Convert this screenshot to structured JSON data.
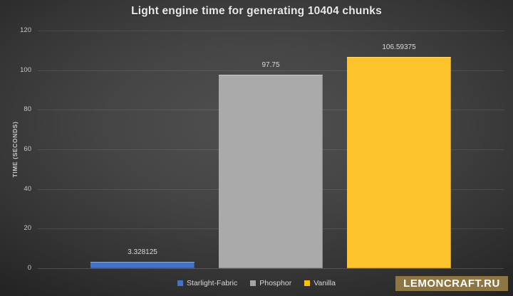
{
  "chart_data": {
    "type": "bar",
    "title": "Light engine time for generating 10404 chunks",
    "categories": [
      "Starlight-Fabric",
      "Phosphor",
      "Vanilla"
    ],
    "values": [
      3.328125,
      97.75,
      106.59375
    ],
    "data_labels": [
      "3.328125",
      "97.75",
      "106.59375"
    ],
    "series_colors": [
      "#4472c4",
      "#aaaaaa",
      "#fcc32d"
    ],
    "xlabel": "",
    "ylabel": "TIME (SECONDS)",
    "ylim": [
      0,
      120
    ],
    "yticks": [
      "0",
      "20",
      "40",
      "60",
      "80",
      "100",
      "120"
    ],
    "grid": true,
    "legend_position": "bottom"
  },
  "legend_items": [
    {
      "label": "Starlight-Fabric",
      "color": "#4472c4"
    },
    {
      "label": "Phosphor",
      "color": "#a5a5a5"
    },
    {
      "label": "Vanilla",
      "color": "#ffc000"
    }
  ],
  "watermark": {
    "text": "LEMONCRAFT.RU",
    "bg_color": "#8d7643",
    "text_color": "#ffffff"
  }
}
